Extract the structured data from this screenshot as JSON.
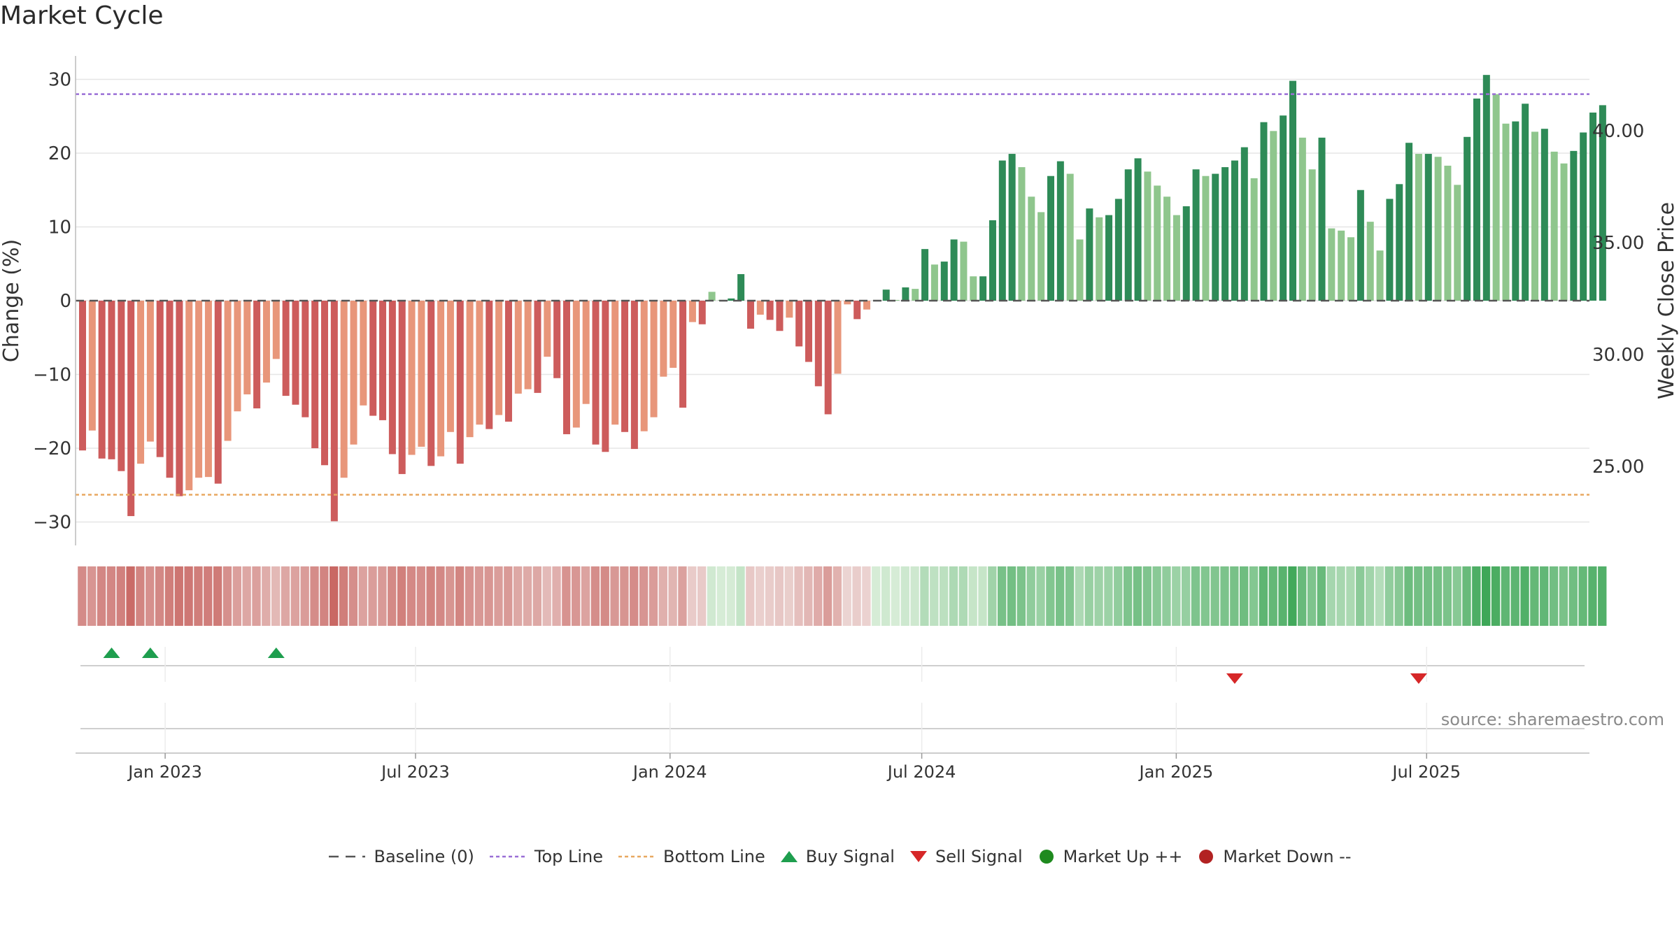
{
  "title": "Market Cycle",
  "source": "source: sharemaestro.com",
  "legend": [
    {
      "key": "baseline",
      "label": "Baseline (0)"
    },
    {
      "key": "top",
      "label": "Top Line"
    },
    {
      "key": "bottom",
      "label": "Bottom Line"
    },
    {
      "key": "buy",
      "label": "Buy Signal"
    },
    {
      "key": "sell",
      "label": "Sell Signal"
    },
    {
      "key": "up",
      "label": "Market Up ++"
    },
    {
      "key": "down",
      "label": "Market Down --"
    }
  ],
  "colors": {
    "neg_dark": "#cd5c5c",
    "neg_light": "#e8967a",
    "pos_dark": "#2e8b57",
    "pos_light": "#8fc68d",
    "top_line": "#9a6fd6",
    "bottom_line": "#e8a860",
    "baseline": "#555555",
    "buy": "#1e9e4e",
    "sell": "#d62728",
    "market_up": "#1f8a1f",
    "market_down": "#b22222"
  },
  "chart_data": {
    "type": "bar",
    "title": "Market Cycle",
    "ylabel": "Change (%)",
    "y2label": "Weekly Close Price",
    "ylim": [
      -33,
      33
    ],
    "yticks": [
      30,
      20,
      10,
      0,
      -10,
      -20,
      -30
    ],
    "y2ticks": [
      "40.00",
      "35.00",
      "30.00",
      "25.00"
    ],
    "xticks": [
      "Jan 2023",
      "Jul 2023",
      "Jan 2024",
      "Jul 2024",
      "Jan 2025",
      "Jul 2025"
    ],
    "x_start": "2022-10-31",
    "bar_interval_days": 7,
    "top_line": 28,
    "bottom_line": -26.3,
    "values": [
      -20.3,
      -17.6,
      -21.4,
      -21.5,
      -23.1,
      -29.2,
      -22.1,
      -19.1,
      -21.2,
      -24.0,
      -26.5,
      -25.7,
      -24.0,
      -23.9,
      -24.8,
      -19.0,
      -15.0,
      -12.7,
      -14.6,
      -11.1,
      -7.9,
      -12.9,
      -14.1,
      -15.8,
      -20.0,
      -22.3,
      -29.9,
      -24.0,
      -19.5,
      -14.2,
      -15.6,
      -16.2,
      -20.8,
      -23.5,
      -20.9,
      -19.8,
      -22.4,
      -21.1,
      -17.8,
      -22.1,
      -18.5,
      -16.8,
      -17.4,
      -15.5,
      -16.4,
      -12.6,
      -12.0,
      -12.5,
      -7.6,
      -10.5,
      -18.1,
      -17.2,
      -14.0,
      -19.5,
      -20.5,
      -16.8,
      -17.8,
      -20.1,
      -17.7,
      -15.8,
      -10.3,
      -9.1,
      -14.5,
      -2.9,
      -3.2,
      1.2,
      0.1,
      0.3,
      3.6,
      -3.8,
      -1.9,
      -2.6,
      -4.1,
      -2.3,
      -6.2,
      -8.3,
      -11.6,
      -15.4,
      -9.9,
      -0.5,
      -2.5,
      -1.2,
      0.1,
      1.5,
      0.1,
      1.8,
      1.6,
      7.0,
      4.9,
      5.3,
      8.3,
      8.0,
      3.3,
      3.3,
      10.9,
      19.0,
      19.9,
      18.1,
      14.1,
      12.0,
      16.9,
      18.9,
      17.2,
      8.3,
      12.5,
      11.3,
      11.6,
      13.8,
      17.8,
      19.3,
      17.5,
      15.6,
      14.1,
      11.6,
      12.8,
      17.8,
      16.9,
      17.2,
      18.1,
      19.0,
      20.8,
      16.6,
      24.2,
      23.0,
      25.1,
      29.8,
      22.1,
      17.8,
      22.1,
      9.8,
      9.5,
      8.6,
      15.0,
      10.7,
      6.8,
      13.8,
      15.8,
      21.4,
      19.9,
      19.9,
      19.5,
      18.3,
      15.7,
      22.2,
      27.4,
      30.6,
      28.0,
      24.0,
      24.3,
      26.7,
      22.9,
      23.3,
      20.2,
      18.6,
      20.3,
      22.8,
      25.5,
      26.5
    ],
    "colors_dark_mask": "alternating by trend",
    "buy_signals": [
      "2022-11-21",
      "2022-12-19",
      "2023-03-20"
    ],
    "sell_signals": [
      "2025-02-10",
      "2025-06-23"
    ]
  }
}
